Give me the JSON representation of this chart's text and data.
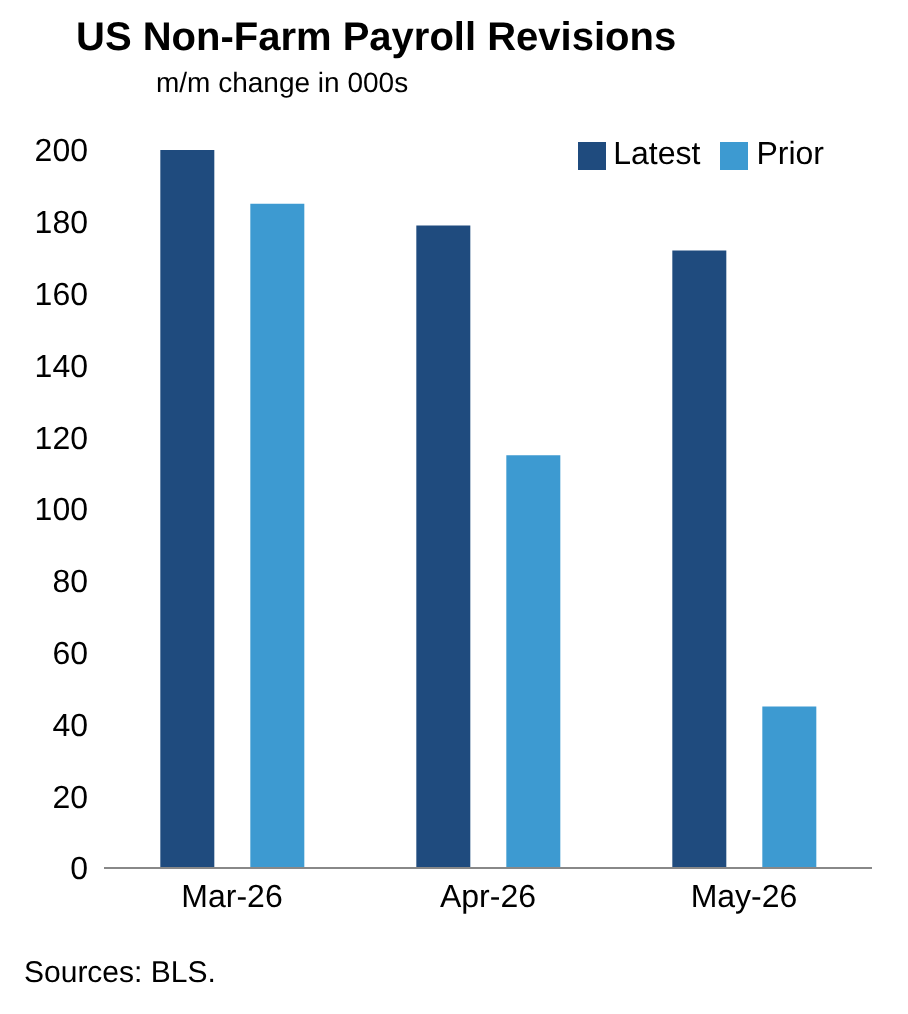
{
  "chart_data": {
    "type": "bar",
    "title": "US Non-Farm Payroll Revisions",
    "subtitle": "m/m change in 000s",
    "categories": [
      "Mar-26",
      "Apr-26",
      "May-26"
    ],
    "series": [
      {
        "name": "Latest",
        "color": "#1f4b7e",
        "values": [
          200,
          179,
          172
        ]
      },
      {
        "name": "Prior",
        "color": "#3d9ad1",
        "values": [
          185,
          115,
          45
        ]
      }
    ],
    "ylim": [
      0,
      200
    ],
    "yticks": [
      0,
      20,
      40,
      60,
      80,
      100,
      120,
      140,
      160,
      180,
      200
    ],
    "legend": "top right",
    "annotations": [
      "Sources: BLS."
    ]
  }
}
